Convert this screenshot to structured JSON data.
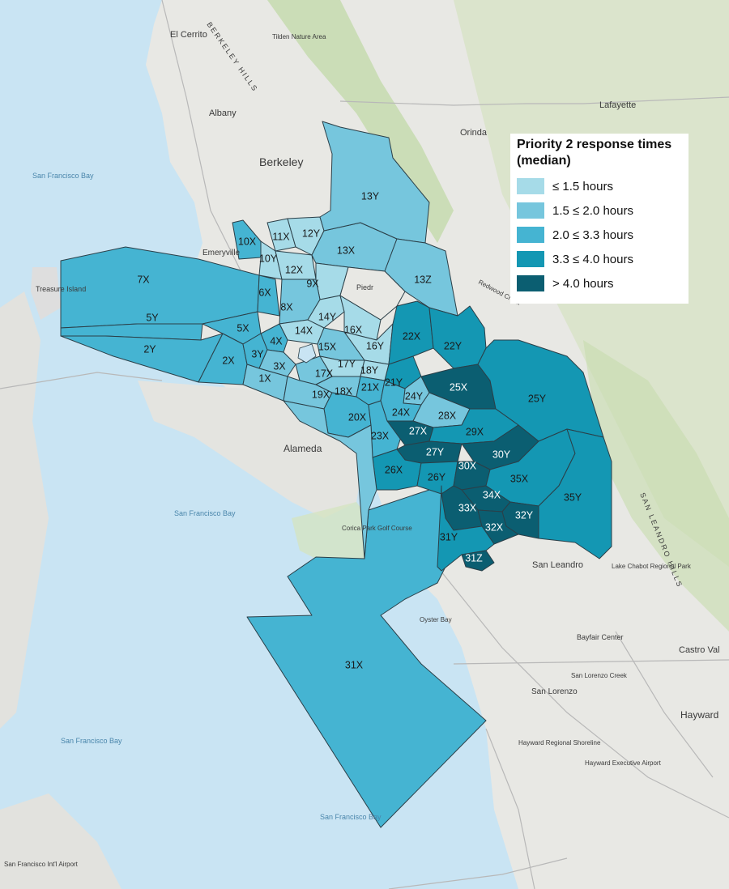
{
  "legend": {
    "title": "Priority 2 response times (median)",
    "items": [
      {
        "label": "≤ 1.5 hours",
        "color": "#a6dbe8"
      },
      {
        "label": "1.5 ≤ 2.0 hours",
        "color": "#76c6dd"
      },
      {
        "label": "2.0 ≤ 3.3 hours",
        "color": "#45b4d2"
      },
      {
        "label": "3.3 ≤ 4.0 hours",
        "color": "#1497b3"
      },
      {
        "label": "> 4.0 hours",
        "color": "#0b5e71"
      }
    ]
  },
  "places": {
    "el_cerrito": "El Cerrito",
    "albany": "Albany",
    "berkeley": "Berkeley",
    "berkeley_hills": "BERKELEY HILLS",
    "emeryville": "Emeryville",
    "orinda": "Orinda",
    "lafayette": "Lafayette",
    "alameda": "Alameda",
    "treasure_island": "Treasure Island",
    "san_leandro": "San Leandro",
    "san_leandro_hills": "SAN LEANDRO HILLS",
    "bayfair": "Bayfair Center",
    "castro_valley": "Castro Val",
    "san_lorenzo": "San Lorenzo",
    "hayward": "Hayward",
    "tilden": "Tilden Nature Area",
    "lake_chabot": "Lake Chabot Regional Park",
    "oyster_bay": "Oyster Bay",
    "corica": "Corica Park Golf Course",
    "hayward_shoreline": "Hayward Regional Shoreline",
    "hayward_airport": "Hayward Executive Airport",
    "sfo": "San Francisco Int'l Airport",
    "redwood_creek": "Redwood Creek",
    "san_lorenzo_creek": "San Lorenzo Creek",
    "piedmont": "Piedr"
  },
  "water": {
    "bay1": "San Francisco Bay",
    "bay2": "San Francisco Bay",
    "bay3": "San Francisco Bay",
    "bay4": "San Francisco Bay"
  },
  "beats": [
    {
      "id": "13Y",
      "level": 1
    },
    {
      "id": "10X",
      "level": 2
    },
    {
      "id": "11X",
      "level": 0
    },
    {
      "id": "12Y",
      "level": 0
    },
    {
      "id": "10Y",
      "level": 0
    },
    {
      "id": "13X",
      "level": 1
    },
    {
      "id": "13Z",
      "level": 1
    },
    {
      "id": "12X",
      "level": 0
    },
    {
      "id": "9X",
      "level": 0
    },
    {
      "id": "7X",
      "level": 2
    },
    {
      "id": "6X",
      "level": 2
    },
    {
      "id": "8X",
      "level": 1
    },
    {
      "id": "5Y",
      "level": 2
    },
    {
      "id": "5X",
      "level": 2
    },
    {
      "id": "14Y",
      "level": 0
    },
    {
      "id": "14X",
      "level": 0
    },
    {
      "id": "16X",
      "level": 0
    },
    {
      "id": "4X",
      "level": 2
    },
    {
      "id": "2Y",
      "level": 2
    },
    {
      "id": "2X",
      "level": 2
    },
    {
      "id": "15X",
      "level": 1
    },
    {
      "id": "16Y",
      "level": 0
    },
    {
      "id": "3Y",
      "level": 2
    },
    {
      "id": "3X",
      "level": 1
    },
    {
      "id": "1X",
      "level": 1
    },
    {
      "id": "17Y",
      "level": 0
    },
    {
      "id": "17X",
      "level": 1
    },
    {
      "id": "18Y",
      "level": 0
    },
    {
      "id": "19X",
      "level": 1
    },
    {
      "id": "18X",
      "level": 1
    },
    {
      "id": "22X",
      "level": 3
    },
    {
      "id": "22Y",
      "level": 3
    },
    {
      "id": "21Y",
      "level": 3
    },
    {
      "id": "21X",
      "level": 2
    },
    {
      "id": "25X",
      "level": 4
    },
    {
      "id": "25Y",
      "level": 3
    },
    {
      "id": "24Y",
      "level": 1
    },
    {
      "id": "20X",
      "level": 2
    },
    {
      "id": "24X",
      "level": 2
    },
    {
      "id": "28X",
      "level": 1
    },
    {
      "id": "23X",
      "level": 2
    },
    {
      "id": "27X",
      "level": 4
    },
    {
      "id": "29X",
      "level": 3
    },
    {
      "id": "27Y",
      "level": 4
    },
    {
      "id": "30Y",
      "level": 4
    },
    {
      "id": "26X",
      "level": 3
    },
    {
      "id": "26Y",
      "level": 3
    },
    {
      "id": "30X",
      "level": 4
    },
    {
      "id": "35X",
      "level": 3
    },
    {
      "id": "34X",
      "level": 4
    },
    {
      "id": "35Y",
      "level": 3
    },
    {
      "id": "33X",
      "level": 4
    },
    {
      "id": "32Y",
      "level": 4
    },
    {
      "id": "32X",
      "level": 4
    },
    {
      "id": "31Y",
      "level": 3
    },
    {
      "id": "31Z",
      "level": 4
    },
    {
      "id": "31X",
      "level": 2
    }
  ]
}
